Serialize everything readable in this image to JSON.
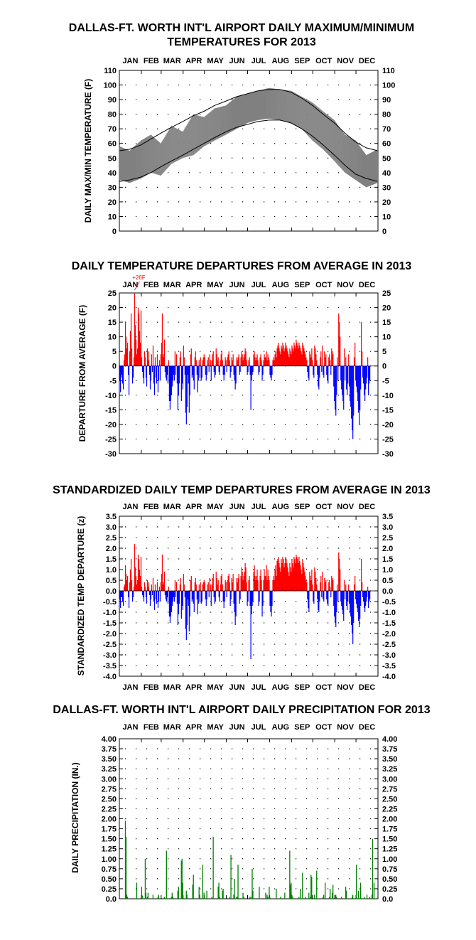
{
  "chart_data": [
    {
      "type": "area",
      "title_lines": [
        "DALLAS-FT. WORTH INT'L AIRPORT DAILY MAXIMUM/MINIMUM",
        "TEMPERATURES FOR 2013"
      ],
      "ylabel": "DAILY MAX/MIN TEMPERATURE (F)",
      "months": [
        "JAN",
        "FEB",
        "MAR",
        "APR",
        "MAY",
        "JUN",
        "JUL",
        "AUG",
        "SEP",
        "OCT",
        "NOV",
        "DEC"
      ],
      "ylim": [
        0,
        110
      ],
      "yticks": [
        0,
        10,
        20,
        30,
        40,
        50,
        60,
        70,
        80,
        90,
        100,
        110
      ],
      "grid": true,
      "x": [
        1,
        15,
        31,
        45,
        59,
        74,
        90,
        105,
        120,
        135,
        151,
        166,
        181,
        196,
        212,
        227,
        243,
        258,
        273,
        288,
        304,
        319,
        334,
        349,
        365
      ],
      "series": [
        {
          "role": "observed_max",
          "color": "#808080",
          "values": [
            58,
            55,
            62,
            66,
            60,
            72,
            68,
            80,
            78,
            84,
            86,
            92,
            94,
            96,
            98,
            97,
            96,
            92,
            88,
            82,
            76,
            66,
            62,
            52,
            56
          ]
        },
        {
          "role": "observed_min",
          "color": "#808080",
          "values": [
            35,
            33,
            36,
            40,
            38,
            46,
            50,
            52,
            58,
            62,
            66,
            70,
            74,
            76,
            77,
            76,
            74,
            70,
            62,
            56,
            48,
            40,
            35,
            30,
            33
          ]
        },
        {
          "role": "normal_max",
          "color": "#000000",
          "values": [
            55,
            56,
            59,
            63,
            67,
            71,
            75,
            79,
            82,
            86,
            89,
            92,
            94,
            96,
            97,
            97,
            95,
            91,
            86,
            80,
            74,
            67,
            61,
            57,
            55
          ]
        },
        {
          "role": "normal_min",
          "color": "#000000",
          "values": [
            34,
            35,
            37,
            40,
            44,
            48,
            52,
            56,
            60,
            64,
            68,
            71,
            73,
            75,
            76,
            76,
            74,
            70,
            65,
            59,
            52,
            45,
            39,
            36,
            34
          ]
        }
      ]
    },
    {
      "type": "bar",
      "title": "DAILY TEMPERATURE DEPARTURES FROM AVERAGE IN 2013",
      "ylabel": "DEPARTURE FROM AVERAGE (F)",
      "months": [
        "JAN",
        "FEB",
        "MAR",
        "APR",
        "MAY",
        "JUN",
        "JUL",
        "AUG",
        "SEP",
        "OCT",
        "NOV",
        "DEC"
      ],
      "ylim": [
        -30,
        25
      ],
      "yticks": [
        -30,
        -25,
        -20,
        -15,
        -10,
        -5,
        0,
        5,
        10,
        15,
        20,
        25
      ],
      "grid": true,
      "annotation": "+26F",
      "positive_color": "#ff0000",
      "negative_color": "#0000ff",
      "values": [
        -5,
        -9,
        -4,
        -3,
        -6,
        -8,
        2,
        4,
        15,
        10,
        6,
        8,
        -3,
        -10,
        5,
        12,
        18,
        6,
        -6,
        -4,
        3,
        26,
        14,
        9,
        4,
        6,
        20,
        18,
        12,
        8,
        19,
        3,
        -2,
        -4,
        -6,
        5,
        3,
        -4,
        -7,
        6,
        2,
        5,
        -3,
        -8,
        -5,
        4,
        -2,
        7,
        -6,
        -10,
        3,
        -4,
        -6,
        4,
        -9,
        -5,
        2,
        -5,
        4,
        8,
        18,
        3,
        4,
        9,
        -2,
        -4,
        -5,
        -3,
        -6,
        2,
        -12,
        -15,
        -12,
        -10,
        -7,
        -5,
        -3,
        -5,
        5,
        -3,
        4,
        -6,
        -15,
        -10,
        -6,
        3,
        5,
        -12,
        -6,
        -8,
        7,
        3,
        -3,
        -16,
        -20,
        -14,
        -3,
        -6,
        -16,
        -10,
        4,
        6,
        -4,
        -3,
        -5,
        -8,
        3,
        5,
        2,
        -3,
        -9,
        -5,
        2,
        -4,
        3,
        -5,
        -4,
        2,
        3,
        4,
        3,
        -3,
        -5,
        -3,
        2,
        3,
        -2,
        4,
        2,
        -5,
        2,
        4,
        5,
        -2,
        -4,
        -3,
        6,
        4,
        2,
        3,
        -2,
        -3,
        2,
        4,
        5,
        2,
        -3,
        -5,
        -3,
        3,
        2,
        -2,
        3,
        4,
        5,
        2,
        -4,
        -2,
        3,
        2,
        4,
        -3,
        -5,
        -8,
        -6,
        3,
        2,
        3,
        4,
        -3,
        -2,
        3,
        5,
        4,
        2,
        3,
        4,
        6,
        5,
        2,
        -3,
        -2,
        2,
        3,
        -3,
        -15,
        -5,
        -3,
        -2,
        4,
        5,
        3,
        2,
        3,
        4,
        2,
        -3,
        -2,
        3,
        4,
        2,
        -5,
        -3,
        2,
        4,
        3,
        3,
        5,
        2,
        4,
        3,
        2,
        -3,
        -4,
        -5,
        -3,
        2,
        3,
        2,
        4,
        5,
        3,
        6,
        7,
        8,
        6,
        5,
        4,
        7,
        6,
        8,
        7,
        5,
        6,
        8,
        7,
        6,
        5,
        4,
        3,
        6,
        5,
        4,
        7,
        6,
        5,
        8,
        7,
        6,
        9,
        8,
        7,
        6,
        8,
        7,
        6,
        5,
        4,
        8,
        7,
        6,
        5,
        4,
        3,
        2,
        -2,
        -4,
        -5,
        5,
        4,
        3,
        6,
        2,
        -3,
        -4,
        7,
        6,
        4,
        2,
        -3,
        -7,
        -8,
        -4,
        3,
        5,
        -2,
        7,
        -3,
        -4,
        5,
        3,
        4,
        -3,
        -5,
        -6,
        3,
        4,
        2,
        -3,
        6,
        5,
        4,
        -7,
        -12,
        -15,
        -17,
        -10,
        3,
        -5,
        18,
        15,
        10,
        -5,
        -8,
        -10,
        -12,
        -15,
        6,
        -5,
        3,
        -8,
        -10,
        -6,
        4,
        -7,
        -12,
        -14,
        -18,
        -22,
        -25,
        -17,
        3,
        8,
        -5,
        -7,
        -9,
        -12,
        -16,
        -20,
        -15,
        -8,
        15,
        5,
        -4,
        -6,
        -10,
        -12,
        -8,
        -6,
        -4,
        3,
        -10,
        -6,
        -5
      ]
    },
    {
      "type": "bar",
      "title": "STANDARDIZED DAILY TEMP DEPARTURES FROM AVERAGE IN 2013",
      "ylabel": "STANDARDIZED TEMP DEPARTURE (z)",
      "months": [
        "JAN",
        "FEB",
        "MAR",
        "APR",
        "MAY",
        "JUN",
        "JUL",
        "AUG",
        "SEP",
        "OCT",
        "NOV",
        "DEC"
      ],
      "ylim": [
        -4.0,
        3.5
      ],
      "yticks": [
        -4.0,
        -3.5,
        -3.0,
        -2.5,
        -2.0,
        -1.5,
        -1.0,
        -0.5,
        0.0,
        0.5,
        1.0,
        1.5,
        2.0,
        2.5,
        3.0,
        3.5
      ],
      "grid": true,
      "positive_color": "#ff0000",
      "negative_color": "#0000ff",
      "values": [
        -0.4,
        -0.8,
        -0.3,
        -0.3,
        -0.5,
        -0.7,
        0.2,
        0.3,
        1.2,
        0.8,
        0.5,
        0.7,
        -0.3,
        -0.8,
        0.4,
        1.0,
        1.5,
        0.5,
        -0.5,
        -0.3,
        0.2,
        2.2,
        1.1,
        0.7,
        0.3,
        0.5,
        1.7,
        1.5,
        1.0,
        0.7,
        1.6,
        0.2,
        -0.2,
        -0.3,
        -0.5,
        0.4,
        0.2,
        -0.3,
        -0.6,
        0.5,
        0.2,
        0.4,
        -0.2,
        -0.7,
        -0.4,
        0.3,
        -0.2,
        0.6,
        -0.5,
        -0.9,
        0.3,
        -0.4,
        -0.6,
        0.4,
        -0.8,
        -0.5,
        0.2,
        -0.5,
        0.4,
        0.8,
        1.7,
        0.3,
        0.4,
        0.9,
        -0.2,
        -0.4,
        -0.5,
        -0.3,
        -0.6,
        0.2,
        -1.2,
        -1.5,
        -1.2,
        -1.0,
        -0.7,
        -0.5,
        -0.3,
        -0.5,
        0.5,
        -0.3,
        0.4,
        -0.6,
        -1.6,
        -1.1,
        -0.6,
        0.3,
        0.6,
        -1.3,
        -0.7,
        -0.9,
        0.8,
        0.3,
        -0.3,
        -1.8,
        -2.3,
        -1.6,
        -0.4,
        -0.7,
        -1.9,
        -1.2,
        0.5,
        0.7,
        -0.5,
        -0.4,
        -0.6,
        -1.0,
        0.4,
        0.6,
        0.3,
        -0.4,
        -1.1,
        -0.6,
        0.3,
        -0.5,
        0.4,
        -0.6,
        -0.5,
        0.3,
        0.4,
        0.5,
        0.4,
        -0.4,
        -0.7,
        -0.4,
        0.3,
        0.4,
        -0.3,
        0.6,
        0.3,
        -0.7,
        0.3,
        0.6,
        0.8,
        -0.3,
        -0.6,
        -0.5,
        0.9,
        0.6,
        0.3,
        0.5,
        -0.3,
        -0.5,
        0.3,
        0.7,
        0.8,
        0.3,
        -0.5,
        -0.8,
        -0.5,
        0.5,
        0.4,
        -0.3,
        0.5,
        0.7,
        0.8,
        0.4,
        -0.7,
        -0.4,
        0.6,
        0.4,
        0.8,
        -0.6,
        -1.0,
        -1.6,
        -1.2,
        0.6,
        0.4,
        0.6,
        0.8,
        -0.6,
        -0.4,
        0.7,
        1.1,
        0.9,
        0.5,
        0.7,
        0.9,
        1.3,
        1.1,
        0.4,
        -0.7,
        -0.5,
        0.5,
        0.7,
        -0.7,
        -3.2,
        -1.1,
        -0.7,
        -0.5,
        0.9,
        1.2,
        0.7,
        0.5,
        0.7,
        1.0,
        0.5,
        -0.7,
        -0.5,
        0.7,
        1.0,
        0.5,
        -1.2,
        -0.7,
        0.5,
        1.0,
        0.7,
        0.7,
        1.2,
        0.5,
        1.0,
        0.7,
        0.5,
        -0.7,
        -1.0,
        -1.2,
        -0.7,
        0.5,
        0.7,
        0.5,
        1.0,
        1.2,
        0.7,
        1.4,
        1.5,
        1.6,
        1.3,
        1.1,
        0.9,
        1.5,
        1.3,
        1.6,
        1.5,
        1.1,
        1.3,
        1.6,
        1.5,
        1.3,
        1.1,
        0.9,
        0.7,
        1.3,
        1.1,
        0.9,
        1.5,
        1.3,
        1.1,
        1.6,
        1.5,
        1.3,
        1.7,
        1.6,
        1.5,
        1.3,
        1.6,
        1.4,
        1.2,
        1.0,
        0.8,
        1.5,
        1.3,
        1.1,
        0.9,
        0.7,
        0.5,
        0.4,
        -0.4,
        -0.8,
        -1.0,
        0.9,
        0.7,
        0.5,
        1.0,
        0.3,
        -0.5,
        -0.6,
        1.1,
        0.9,
        0.6,
        0.3,
        -0.4,
        -0.9,
        -1.0,
        -0.5,
        0.4,
        0.7,
        -0.3,
        0.9,
        -0.4,
        -0.5,
        0.6,
        0.4,
        0.5,
        -0.4,
        -0.6,
        -0.7,
        0.4,
        0.5,
        0.2,
        -0.3,
        0.7,
        0.6,
        0.5,
        -0.7,
        -1.2,
        -1.5,
        -1.7,
        -1.0,
        0.3,
        -0.5,
        1.8,
        1.5,
        1.0,
        -0.5,
        -0.7,
        -0.9,
        -1.1,
        -1.4,
        0.5,
        -0.4,
        0.3,
        -0.7,
        -0.9,
        -0.5,
        0.3,
        -0.6,
        -1.0,
        -1.2,
        -1.6,
        -2.0,
        -2.5,
        -1.5,
        0.3,
        0.7,
        -0.4,
        -0.6,
        -0.8,
        -1.0,
        -1.4,
        -1.7,
        -1.3,
        -0.7,
        1.5,
        0.4,
        -0.3,
        -0.5,
        -0.8,
        -1.0,
        -0.7,
        -0.5,
        -0.3,
        0.2,
        -0.8,
        -0.5,
        -0.4
      ]
    },
    {
      "type": "bar",
      "title": "DALLAS-FT. WORTH INT'L AIRPORT DAILY PRECIPITATION FOR 2013",
      "ylabel": "DAILY PRECIPITATION (IN.)",
      "months": [
        "JAN",
        "FEB",
        "MAR",
        "APR",
        "MAY",
        "JUN",
        "JUL",
        "AUG",
        "SEP",
        "OCT",
        "NOV",
        "DEC"
      ],
      "ylim": [
        0.0,
        4.0
      ],
      "yticks": [
        "0.0",
        "0.25",
        "0.50",
        "0.75",
        "1.00",
        "1.25",
        "1.50",
        "1.75",
        "2.00",
        "2.25",
        "2.50",
        "2.75",
        "3.00",
        "3.25",
        "3.50",
        "3.75",
        "4.00"
      ],
      "grid": true,
      "bar_color": "#008000",
      "precip_days": [
        9,
        10,
        11,
        12,
        25,
        32,
        33,
        37,
        38,
        40,
        41,
        48,
        55,
        56,
        64,
        67,
        74,
        75,
        76,
        83,
        84,
        88,
        89,
        90,
        95,
        96,
        104,
        105,
        113,
        114,
        118,
        120,
        124,
        131,
        133,
        140,
        141,
        142,
        146,
        147,
        156,
        158,
        162,
        163,
        166,
        167,
        168,
        175,
        176,
        184,
        186,
        188,
        189,
        198,
        207,
        209,
        210,
        212,
        213,
        222,
        228,
        234,
        241,
        242,
        243,
        244,
        245,
        254,
        256,
        259,
        263,
        268,
        270,
        271,
        272,
        276,
        279,
        288,
        289,
        291,
        297,
        298,
        301,
        302,
        306,
        307,
        314,
        320,
        321,
        329,
        330,
        335,
        338,
        341,
        346,
        350,
        354,
        357,
        358,
        360
      ],
      "precip_values": [
        1.95,
        1.55,
        0.1,
        0.05,
        0.4,
        0.3,
        0.08,
        1.0,
        0.15,
        0.05,
        0.15,
        0.1,
        0.05,
        0.1,
        0.05,
        1.2,
        0.05,
        0.15,
        0.05,
        0.2,
        0.3,
        0.95,
        1.0,
        0.4,
        0.2,
        0.1,
        0.35,
        0.6,
        0.3,
        0.1,
        0.85,
        0.15,
        0.2,
        0.05,
        1.55,
        0.3,
        0.4,
        0.05,
        0.2,
        0.25,
        0.05,
        1.1,
        0.1,
        0.5,
        0.05,
        0.05,
        0.85,
        0.15,
        0.05,
        0.05,
        0.05,
        0.75,
        0.2,
        0.3,
        0.15,
        0.1,
        0.05,
        0.3,
        0.05,
        0.25,
        0.05,
        0.15,
        1.2,
        0.35,
        0.4,
        0.1,
        0.05,
        0.05,
        0.25,
        0.65,
        0.05,
        0.15,
        0.05,
        0.6,
        0.55,
        0.1,
        0.7,
        0.05,
        0.1,
        0.4,
        0.05,
        0.25,
        0.15,
        0.35,
        0.1,
        0.05,
        0.05,
        0.3,
        0.2,
        0.05,
        0.1,
        0.85,
        0.2,
        0.4,
        0.05,
        0.1,
        0.05,
        0.1,
        1.5,
        0.4
      ]
    }
  ]
}
